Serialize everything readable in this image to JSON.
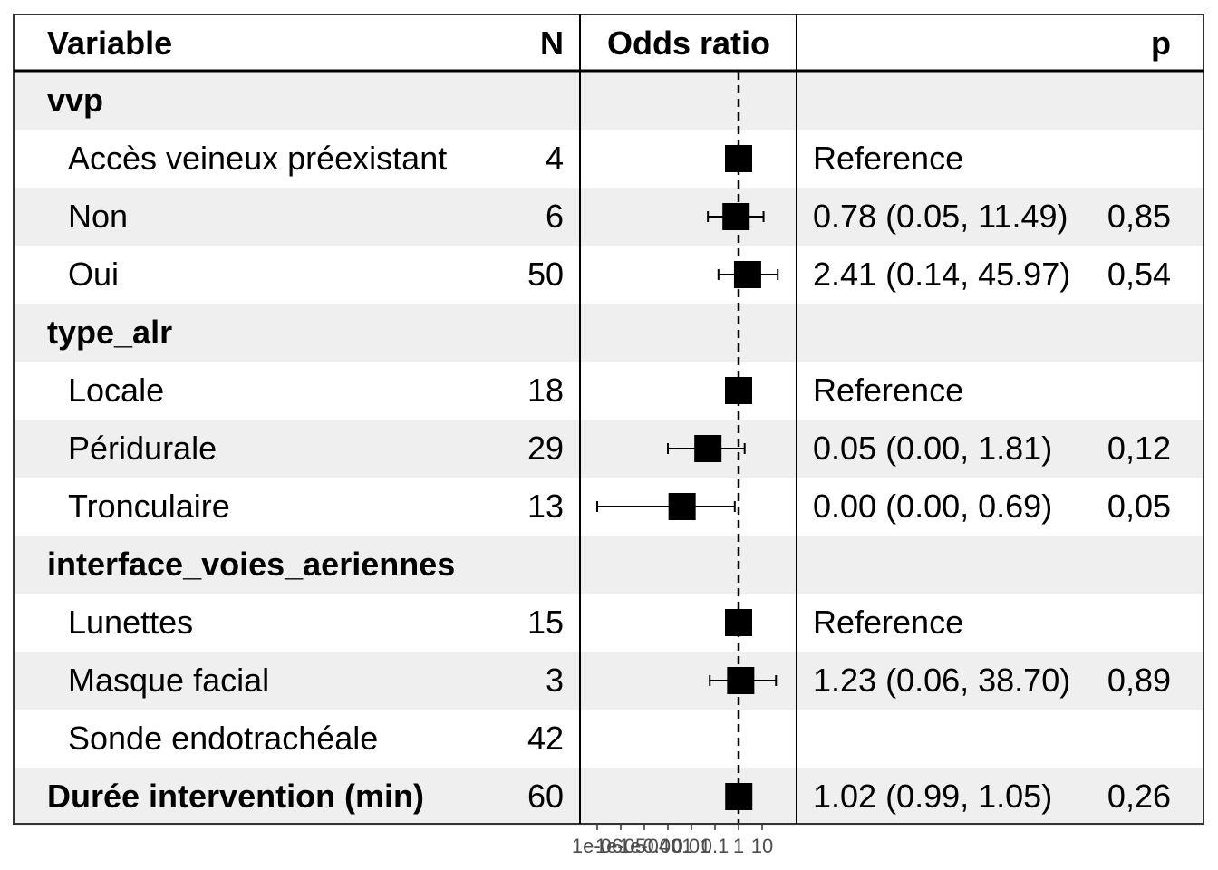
{
  "chart_data": {
    "type": "forest",
    "headers": {
      "variable": "Variable",
      "n": "N",
      "or": "Odds ratio",
      "p": "p"
    },
    "x_scale": "log10",
    "reference_line": 1,
    "xlim": [
      1e-06,
      100
    ],
    "x_ticks": [
      {
        "value": 1e-06,
        "label": "1e-06"
      },
      {
        "value": 1e-05,
        "label": "1e-05"
      },
      {
        "value": 0.0001,
        "label": "1e-04"
      },
      {
        "value": 0.001,
        "label": "0.001"
      },
      {
        "value": 0.01,
        "label": "0.01"
      },
      {
        "value": 0.1,
        "label": "0.1"
      },
      {
        "value": 1,
        "label": "1"
      },
      {
        "value": 10,
        "label": "10"
      }
    ],
    "rows": [
      {
        "label": "vvp",
        "kind": "group",
        "n": "",
        "estimate": null,
        "lo": null,
        "hi": null,
        "or_text": "",
        "p_text": ""
      },
      {
        "label": "Accès veineux préexistant",
        "kind": "level",
        "n": "4",
        "estimate": 1,
        "lo": null,
        "hi": null,
        "or_text": "Reference",
        "p_text": ""
      },
      {
        "label": "Non",
        "kind": "level",
        "n": "6",
        "estimate": 0.78,
        "lo": 0.05,
        "hi": 11.49,
        "or_text": "0.78 (0.05, 11.49)",
        "p_text": "0,85"
      },
      {
        "label": "Oui",
        "kind": "level",
        "n": "50",
        "estimate": 2.41,
        "lo": 0.14,
        "hi": 45.97,
        "or_text": "2.41 (0.14, 45.97)",
        "p_text": "0,54"
      },
      {
        "label": "type_alr",
        "kind": "group",
        "n": "",
        "estimate": null,
        "lo": null,
        "hi": null,
        "or_text": "",
        "p_text": ""
      },
      {
        "label": "Locale",
        "kind": "level",
        "n": "18",
        "estimate": 1,
        "lo": null,
        "hi": null,
        "or_text": "Reference",
        "p_text": ""
      },
      {
        "label": "Péridurale",
        "kind": "level",
        "n": "29",
        "estimate": 0.05,
        "lo": 0.001,
        "hi": 1.81,
        "or_text": "0.05 (0.00, 1.81)",
        "p_text": "0,12"
      },
      {
        "label": "Tronculaire",
        "kind": "level",
        "n": "13",
        "estimate": 0.004,
        "lo": 1e-06,
        "hi": 0.69,
        "or_text": "0.00 (0.00, 0.69)",
        "p_text": "0,05"
      },
      {
        "label": "interface_voies_aeriennes",
        "kind": "group",
        "n": "",
        "estimate": null,
        "lo": null,
        "hi": null,
        "or_text": "",
        "p_text": ""
      },
      {
        "label": "Lunettes",
        "kind": "level",
        "n": "15",
        "estimate": 1,
        "lo": null,
        "hi": null,
        "or_text": "Reference",
        "p_text": ""
      },
      {
        "label": "Masque facial",
        "kind": "level",
        "n": "3",
        "estimate": 1.23,
        "lo": 0.06,
        "hi": 38.7,
        "or_text": "1.23 (0.06, 38.70)",
        "p_text": "0,89"
      },
      {
        "label": "Sonde endotrachéale",
        "kind": "level",
        "n": "42",
        "estimate": null,
        "lo": null,
        "hi": null,
        "or_text": "",
        "p_text": ""
      },
      {
        "label": "Durée intervention (min)",
        "kind": "single",
        "n": "60",
        "estimate": 1.02,
        "lo": 0.99,
        "hi": 1.05,
        "or_text": "1.02 (0.99, 1.05)",
        "p_text": "0,26"
      }
    ]
  }
}
